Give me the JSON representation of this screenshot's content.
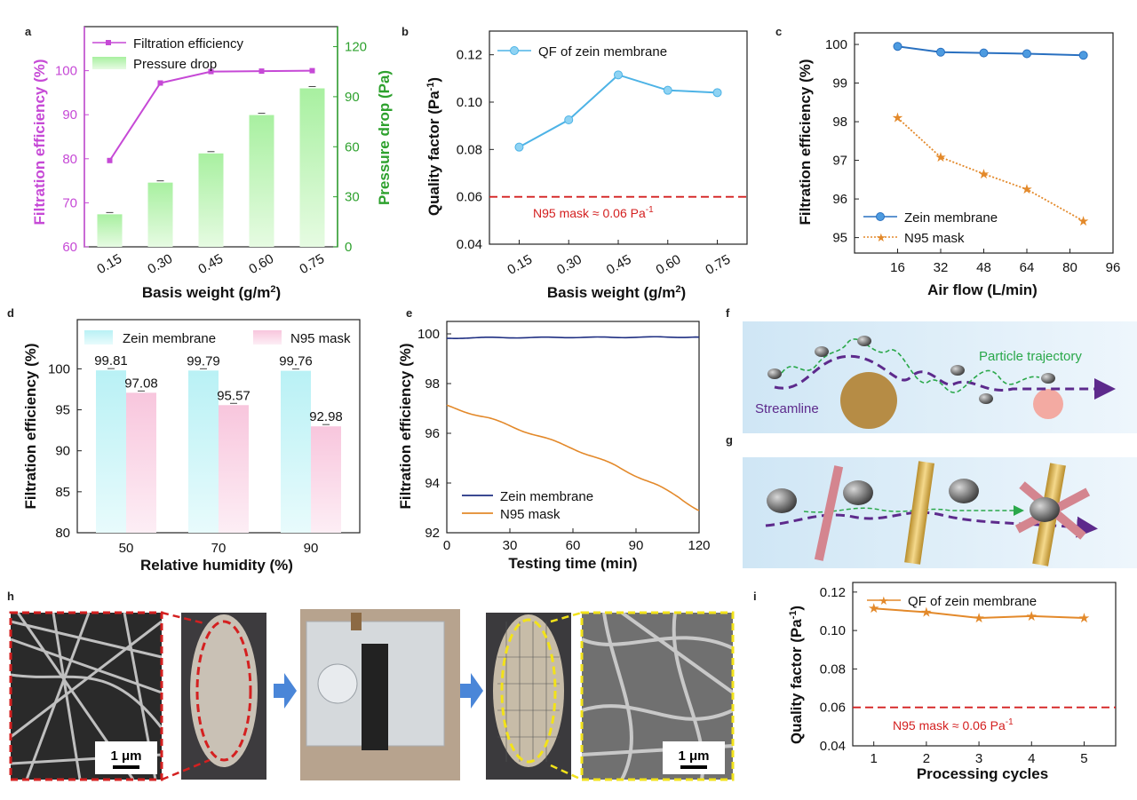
{
  "panel_labels": {
    "a": "a",
    "b": "b",
    "c": "c",
    "d": "d",
    "e": "e",
    "f": "f",
    "g": "g",
    "h": "h",
    "i": "i"
  },
  "colors": {
    "magenta": "#c649d6",
    "green": "#2ea12e",
    "green_bar": "#c9f5c0",
    "blue": "#4db3e6",
    "navy": "#1f2f82",
    "orange": "#e3892a",
    "red_dash": "#d42020",
    "cyan_bar": "#c4f3f6",
    "pink_bar": "#fad1e4",
    "dark_blue": "#2970c0"
  },
  "chart_data": [
    {
      "id": "a",
      "type": "bar",
      "categories": [
        "0.15",
        "0.30",
        "0.45",
        "0.60",
        "0.75"
      ],
      "series": [
        {
          "name": "Filtration efficiency",
          "type": "line",
          "axis": "left",
          "values": [
            79.6,
            97.2,
            99.8,
            99.9,
            100
          ]
        },
        {
          "name": "Pressure drop",
          "type": "bar",
          "axis": "right",
          "values": [
            19.5,
            38.5,
            56,
            79,
            95
          ]
        }
      ],
      "xlabel": "Basis weight (g/m2)",
      "ylabel": "Filtration efficiency (%)",
      "y2label": "Pressure drop (Pa)",
      "ylim": [
        60,
        110
      ],
      "yticks": [
        "60",
        "70",
        "80",
        "90",
        "100"
      ],
      "y2lim": [
        0,
        132
      ],
      "y2ticks": [
        "0",
        "30",
        "60",
        "90",
        "120"
      ]
    },
    {
      "id": "b",
      "type": "line",
      "categories": [
        "0.15",
        "0.30",
        "0.45",
        "0.60",
        "0.75"
      ],
      "series": [
        {
          "name": "QF of zein membrane",
          "values": [
            0.081,
            0.0925,
            0.1115,
            0.105,
            0.104
          ]
        }
      ],
      "reference": {
        "value": 0.06,
        "label": "N95 mask ≈ 0.06 Pa-1"
      },
      "xlabel": "Basis weight (g/m2)",
      "ylabel": "Quality factor (Pa-1)",
      "ylim": [
        0.04,
        0.13
      ],
      "yticks": [
        "0.04",
        "0.06",
        "0.08",
        "0.10",
        "0.12"
      ]
    },
    {
      "id": "c",
      "type": "line",
      "x": [
        16,
        32,
        48,
        64,
        85
      ],
      "series": [
        {
          "name": "Zein membrane",
          "values": [
            99.95,
            99.8,
            99.78,
            99.76,
            99.72
          ]
        },
        {
          "name": "N95 mask",
          "values": [
            98.1,
            97.08,
            96.65,
            96.25,
            95.43
          ]
        }
      ],
      "xlabel": "Air flow (L/min)",
      "ylabel": "Filtration efficiency (%)",
      "xlim": [
        0,
        96
      ],
      "xticks": [
        "16",
        "32",
        "48",
        "64",
        "80",
        "96"
      ],
      "ylim": [
        94.6,
        100.3
      ],
      "yticks": [
        "95",
        "96",
        "97",
        "98",
        "99",
        "100"
      ]
    },
    {
      "id": "d",
      "type": "bar",
      "categories": [
        "50",
        "70",
        "90"
      ],
      "series": [
        {
          "name": "Zein membrane",
          "values": [
            99.81,
            99.79,
            99.76
          ]
        },
        {
          "name": "N95 mask",
          "values": [
            97.08,
            95.57,
            92.98
          ]
        }
      ],
      "data_labels": [
        [
          "99.81",
          "99.79",
          "99.76"
        ],
        [
          "97.08",
          "95.57",
          "92.98"
        ]
      ],
      "xlabel": "Relative humidity (%)",
      "ylabel": "Filtration efficiency (%)",
      "ylim": [
        80,
        106
      ],
      "yticks": [
        "80",
        "85",
        "90",
        "95",
        "100"
      ]
    },
    {
      "id": "e",
      "type": "line",
      "series": [
        {
          "name": "Zein membrane",
          "x": [
            0,
            10,
            20,
            40,
            60,
            80,
            100,
            120
          ],
          "values": [
            99.82,
            99.84,
            99.85,
            99.85,
            99.86,
            99.86,
            99.87,
            99.87
          ]
        },
        {
          "name": "N95 mask",
          "x": [
            0,
            10,
            20,
            30,
            40,
            50,
            60,
            70,
            80,
            90,
            100,
            110,
            120
          ],
          "values": [
            97.1,
            96.85,
            96.6,
            96.3,
            96.0,
            95.7,
            95.4,
            95.05,
            94.7,
            94.3,
            93.9,
            93.45,
            92.9
          ]
        }
      ],
      "xlabel": "Testing time (min)",
      "ylabel": "Filtration efficiency (%)",
      "xlim": [
        0,
        120
      ],
      "xticks": [
        "0",
        "30",
        "60",
        "90",
        "120"
      ],
      "ylim": [
        92,
        100.5
      ],
      "yticks": [
        "92",
        "94",
        "96",
        "98",
        "100"
      ]
    },
    {
      "id": "i",
      "type": "line",
      "x": [
        1,
        2,
        3,
        4,
        5
      ],
      "series": [
        {
          "name": "QF of zein membrane",
          "values": [
            0.1115,
            0.1095,
            0.1065,
            0.1075,
            0.1065
          ]
        }
      ],
      "reference": {
        "value": 0.06,
        "label": "N95 mask ≈ 0.06 Pa-1"
      },
      "xlabel": "Processing cycles",
      "ylabel": "Quality factor (Pa-1)",
      "xlim": [
        0.6,
        5.6
      ],
      "xticks": [
        "1",
        "2",
        "3",
        "4",
        "5"
      ],
      "ylim": [
        0.04,
        0.125
      ],
      "yticks": [
        "0.04",
        "0.06",
        "0.08",
        "0.10",
        "0.12"
      ]
    }
  ],
  "diagram_f": {
    "particle_label": "Particle trajectory",
    "streamline_label": "Streamline"
  },
  "photos_h": {
    "scale_left": "1 μm",
    "scale_right": "1 μm"
  }
}
